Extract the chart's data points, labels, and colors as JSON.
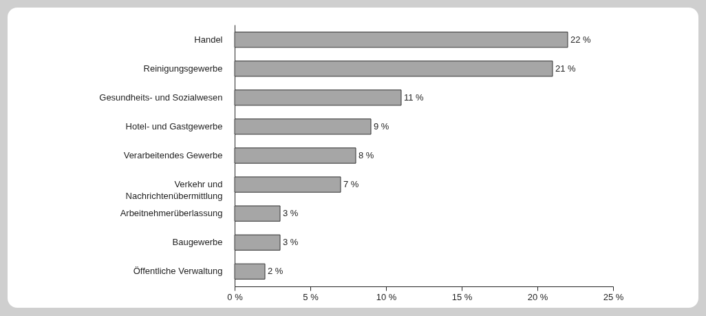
{
  "chart_data": {
    "type": "bar",
    "orientation": "horizontal",
    "categories": [
      "Handel",
      "Reinigungsgewerbe",
      "Gesundheits- und Sozialwesen",
      "Hotel- und Gastgewerbe",
      "Verarbeitendes Gewerbe",
      "Verkehr und\nNachrichtenübermittlung",
      "Arbeitnehmerüberlassung",
      "Baugewerbe",
      "Öffentliche Verwaltung"
    ],
    "values": [
      22,
      21,
      11,
      9,
      8,
      7,
      3,
      3,
      2
    ],
    "value_labels": [
      "22 %",
      "21 %",
      "11 %",
      "9 %",
      "8 %",
      "7 %",
      "3 %",
      "3 %",
      "2 %"
    ],
    "color": "#a6a6a6",
    "xlim": [
      0,
      25
    ],
    "xticks": [
      {
        "value": 0,
        "label": "0 %"
      },
      {
        "value": 5,
        "label": "5 %"
      },
      {
        "value": 10,
        "label": "10 %"
      },
      {
        "value": 15,
        "label": "15 %"
      },
      {
        "value": 20,
        "label": "20 %"
      },
      {
        "value": 25,
        "label": "25 %"
      }
    ]
  }
}
